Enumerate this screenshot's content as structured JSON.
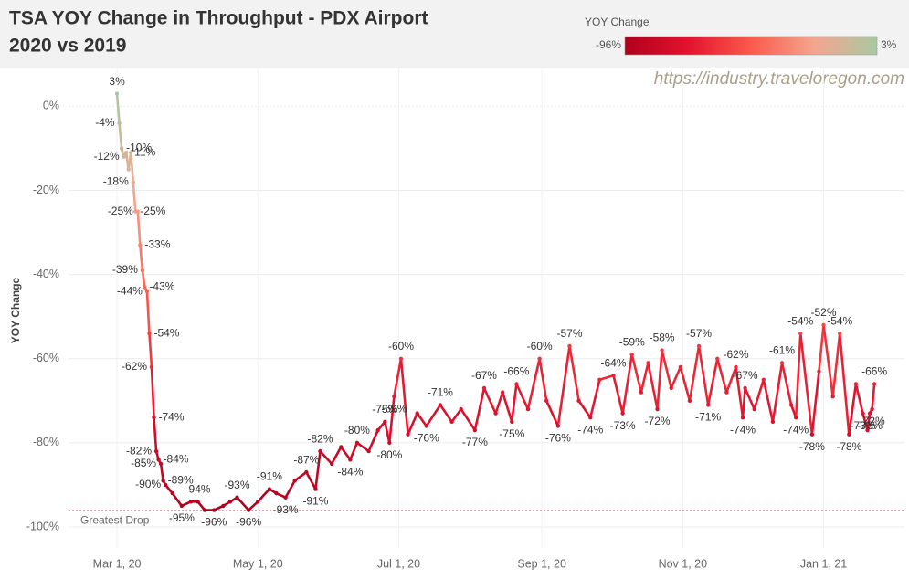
{
  "chart_data": {
    "type": "line",
    "title": "TSA YOY Change in Throughput - PDX Airport",
    "subtitle": "2020 vs 2019",
    "source": "https://industry.traveloregon.com",
    "y_label": "YOY Change",
    "legend": {
      "title": "YOY Change",
      "min": -96,
      "max": 3,
      "min_label": "-96%",
      "max_label": "3%",
      "colors": [
        "#b0001c",
        "#e3122e",
        "#fb5a4c",
        "#f4a58f",
        "#a8c9a2"
      ]
    },
    "reference_line": {
      "value": -96,
      "label": "Greatest Drop"
    },
    "xlim": [
      "2020-02-09",
      "2021-02-05"
    ],
    "xticks": [
      {
        "value": "2020-03-01",
        "label": "Mar 1, 20"
      },
      {
        "value": "2020-05-01",
        "label": "May 1, 20"
      },
      {
        "value": "2020-07-01",
        "label": "Jul 1, 20"
      },
      {
        "value": "2020-09-01",
        "label": "Sep 1, 20"
      },
      {
        "value": "2020-11-01",
        "label": "Nov 1, 20"
      },
      {
        "value": "2021-01-01",
        "label": "Jan 1, 21"
      }
    ],
    "ylim": [
      -105,
      9
    ],
    "yticks": [
      {
        "value": 0,
        "label": "0%"
      },
      {
        "value": -20,
        "label": "-20%"
      },
      {
        "value": -40,
        "label": "-40%"
      },
      {
        "value": -60,
        "label": "-60%"
      },
      {
        "value": -80,
        "label": "-80%"
      },
      {
        "value": -100,
        "label": "-100%"
      }
    ],
    "grid": true,
    "x": [
      "2020-03-01",
      "2020-03-02",
      "2020-03-03",
      "2020-03-04",
      "2020-03-05",
      "2020-03-06",
      "2020-03-07",
      "2020-03-08",
      "2020-03-09",
      "2020-03-10",
      "2020-03-11",
      "2020-03-12",
      "2020-03-13",
      "2020-03-14",
      "2020-03-15",
      "2020-03-16",
      "2020-03-17",
      "2020-03-18",
      "2020-03-19",
      "2020-03-20",
      "2020-03-21",
      "2020-03-22",
      "2020-03-25",
      "2020-03-29",
      "2020-04-02",
      "2020-04-05",
      "2020-04-08",
      "2020-04-12",
      "2020-04-16",
      "2020-04-19",
      "2020-04-22",
      "2020-04-27",
      "2020-05-01",
      "2020-05-06",
      "2020-05-09",
      "2020-05-13",
      "2020-05-17",
      "2020-05-22",
      "2020-05-26",
      "2020-05-28",
      "2020-06-02",
      "2020-06-06",
      "2020-06-10",
      "2020-06-13",
      "2020-06-18",
      "2020-06-22",
      "2020-06-25",
      "2020-06-27",
      "2020-06-29",
      "2020-07-02",
      "2020-07-05",
      "2020-07-09",
      "2020-07-13",
      "2020-07-19",
      "2020-07-24",
      "2020-07-28",
      "2020-08-03",
      "2020-08-07",
      "2020-08-12",
      "2020-08-15",
      "2020-08-19",
      "2020-08-21",
      "2020-08-26",
      "2020-08-31",
      "2020-09-03",
      "2020-09-08",
      "2020-09-13",
      "2020-09-17",
      "2020-09-22",
      "2020-09-26",
      "2020-10-02",
      "2020-10-06",
      "2020-10-10",
      "2020-10-14",
      "2020-10-17",
      "2020-10-21",
      "2020-10-23",
      "2020-10-27",
      "2020-10-31",
      "2020-11-04",
      "2020-11-08",
      "2020-11-12",
      "2020-11-16",
      "2020-11-20",
      "2020-11-24",
      "2020-11-27",
      "2020-11-28",
      "2020-12-02",
      "2020-12-06",
      "2020-12-10",
      "2020-12-14",
      "2020-12-18",
      "2020-12-20",
      "2020-12-22",
      "2020-12-27",
      "2020-12-30",
      "2021-01-01",
      "2021-01-05",
      "2021-01-08",
      "2021-01-12",
      "2021-01-15",
      "2021-01-18",
      "2021-01-20",
      "2021-01-21",
      "2021-01-22",
      "2021-01-23"
    ],
    "series": [
      {
        "name": "YOY Change",
        "values": [
          3,
          -4,
          -10,
          -12,
          -11,
          -15,
          -11,
          -18,
          -25,
          -25,
          -33,
          -39,
          -43,
          -44,
          -54,
          -62,
          -74,
          -82,
          -84,
          -85,
          -89,
          -90,
          -92,
          -95,
          -94,
          -94,
          -96,
          -96,
          -95,
          -94,
          -93,
          -96,
          -94,
          -91,
          -92,
          -93,
          -89,
          -87,
          -91,
          -82,
          -85,
          -81,
          -84,
          -80,
          -82,
          -77,
          -75,
          -80,
          -69,
          -60,
          -78,
          -73,
          -76,
          -71,
          -75,
          -72,
          -77,
          -67,
          -73,
          -68,
          -75,
          -66,
          -72,
          -60,
          -70,
          -76,
          -57,
          -70,
          -74,
          -65,
          -64,
          -73,
          -59,
          -68,
          -61,
          -72,
          -58,
          -67,
          -62,
          -70,
          -57,
          -71,
          -60,
          -68,
          -62,
          -74,
          -67,
          -72,
          -65,
          -75,
          -61,
          -71,
          -74,
          -54,
          -78,
          -63,
          -52,
          -69,
          -54,
          -78,
          -66,
          -73,
          -77,
          -73,
          -72,
          -66
        ],
        "value_labels": [
          "3%",
          "-4%",
          "-10%",
          "-12%",
          "-11%",
          null,
          null,
          "-18%",
          "-25%",
          "-25%",
          "-33%",
          "-39%",
          "-43%",
          "-44%",
          "-54%",
          "-62%",
          "-74%",
          "-82%",
          "-84%",
          "-85%",
          "-89%",
          "-90%",
          null,
          "-95%",
          null,
          "-94%",
          null,
          "-96%",
          null,
          null,
          "-93%",
          "-96%",
          null,
          "-91%",
          null,
          "-93%",
          null,
          "-87%",
          "-91%",
          "-82%",
          null,
          null,
          "-84%",
          "-80%",
          null,
          null,
          "-75%",
          "-80%",
          "-69%",
          "-60%",
          null,
          null,
          "-76%",
          "-71%",
          null,
          null,
          "-77%",
          "-67%",
          null,
          null,
          "-75%",
          "-66%",
          null,
          "-60%",
          null,
          "-76%",
          "-57%",
          null,
          "-74%",
          null,
          "-64%",
          "-73%",
          "-59%",
          null,
          null,
          "-72%",
          "-58%",
          null,
          null,
          null,
          "-57%",
          "-71%",
          null,
          null,
          "-62%",
          "-74%",
          "-67%",
          null,
          null,
          null,
          "-61%",
          null,
          "-74%",
          "-54%",
          "-78%",
          null,
          "-52%",
          null,
          "-54%",
          "-78%",
          null,
          "-73%",
          null,
          "-73%",
          "-72%",
          "-66%"
        ]
      }
    ]
  }
}
